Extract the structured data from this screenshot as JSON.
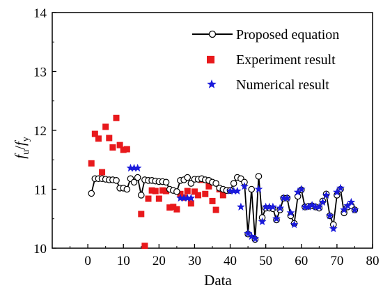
{
  "chart_data": {
    "type": "scatter",
    "title": "",
    "xlabel": "Data",
    "ylabel": {
      "main_1": "f",
      "sub_1": "u",
      "slash": "/",
      "main_2": "f",
      "sub_2": "y"
    },
    "xlim": [
      -10,
      80
    ],
    "ylim": [
      10,
      14
    ],
    "xticks": [
      0,
      10,
      20,
      30,
      40,
      50,
      60,
      70,
      80
    ],
    "yticks": [
      10,
      11,
      12,
      13,
      14
    ],
    "grid": false,
    "legend_position": "top-right",
    "colors": {
      "proposed": "#000000",
      "experiment": "#e8191c",
      "numerical": "#1a1adb"
    },
    "series": [
      {
        "name": "Proposed equation",
        "marker": "open-circle-line",
        "x": [
          1,
          2,
          3,
          4,
          5,
          6,
          7,
          8,
          9,
          10,
          11,
          12,
          13,
          14,
          15,
          16,
          17,
          18,
          19,
          20,
          21,
          22,
          23,
          24,
          25,
          26,
          27,
          28,
          29,
          30,
          31,
          32,
          33,
          34,
          35,
          36,
          37,
          38,
          39,
          40,
          41,
          42,
          43,
          44,
          45,
          46,
          47,
          48,
          49,
          50,
          51,
          52,
          53,
          54,
          55,
          56,
          57,
          58,
          59,
          60,
          61,
          62,
          63,
          64,
          65,
          66,
          67,
          68,
          69,
          70,
          71,
          72,
          73,
          74,
          75
        ],
        "y": [
          10.93,
          11.18,
          11.18,
          11.18,
          11.17,
          11.16,
          11.16,
          11.15,
          11.02,
          11.02,
          11.0,
          11.18,
          11.12,
          11.2,
          10.9,
          11.16,
          11.15,
          11.15,
          11.14,
          11.13,
          11.13,
          11.12,
          11.0,
          10.98,
          10.96,
          11.15,
          11.16,
          11.2,
          11.1,
          11.17,
          11.17,
          11.18,
          11.16,
          11.15,
          11.12,
          11.1,
          11.02,
          11.0,
          10.98,
          10.98,
          11.1,
          11.2,
          11.18,
          11.12,
          10.24,
          11.0,
          10.15,
          11.22,
          10.52,
          10.68,
          10.68,
          10.67,
          10.48,
          10.65,
          10.85,
          10.85,
          10.55,
          10.42,
          10.88,
          10.99,
          10.7,
          10.71,
          10.72,
          10.7,
          10.68,
          10.8,
          10.92,
          10.55,
          10.4,
          10.9,
          11.0,
          10.6,
          10.7,
          10.72,
          10.65
        ]
      },
      {
        "name": "Experiment result",
        "marker": "square",
        "x": [
          1,
          2,
          3,
          4,
          5,
          6,
          7,
          8,
          9,
          10,
          11,
          15,
          16,
          17,
          18,
          19,
          20,
          21,
          22,
          23,
          24,
          25,
          26,
          27,
          28,
          29,
          30,
          31,
          32,
          33,
          34,
          35,
          36,
          37,
          38,
          39
        ],
        "y": [
          11.44,
          11.94,
          11.86,
          11.29,
          12.06,
          11.87,
          11.71,
          12.21,
          11.75,
          11.67,
          11.68,
          10.58,
          10.04,
          10.84,
          10.98,
          10.97,
          10.84,
          10.98,
          10.97,
          10.69,
          10.7,
          10.66,
          10.92,
          10.86,
          10.97,
          10.76,
          10.96,
          10.9,
          11.16,
          10.92,
          11.05,
          10.8,
          10.65,
          11.0,
          10.9,
          10.98
        ]
      },
      {
        "name": "Numerical result",
        "marker": "star",
        "x": [
          12,
          13,
          14,
          26,
          27,
          28,
          29,
          40,
          41,
          42,
          43,
          44,
          45,
          46,
          47,
          48,
          49,
          50,
          51,
          52,
          53,
          54,
          55,
          56,
          57,
          58,
          59,
          60,
          61,
          62,
          63,
          64,
          65,
          66,
          67,
          68,
          69,
          70,
          71,
          72,
          73,
          74,
          75
        ],
        "y": [
          11.36,
          11.36,
          11.36,
          10.85,
          10.85,
          10.85,
          10.85,
          10.97,
          10.97,
          10.97,
          10.7,
          11.05,
          10.25,
          10.2,
          10.16,
          11.0,
          10.45,
          10.7,
          10.7,
          10.7,
          10.5,
          10.68,
          10.85,
          10.85,
          10.6,
          10.4,
          10.95,
          11.0,
          10.7,
          10.7,
          10.73,
          10.7,
          10.7,
          10.78,
          10.9,
          10.55,
          10.33,
          10.95,
          11.02,
          10.65,
          10.72,
          10.78,
          10.65
        ]
      }
    ]
  }
}
